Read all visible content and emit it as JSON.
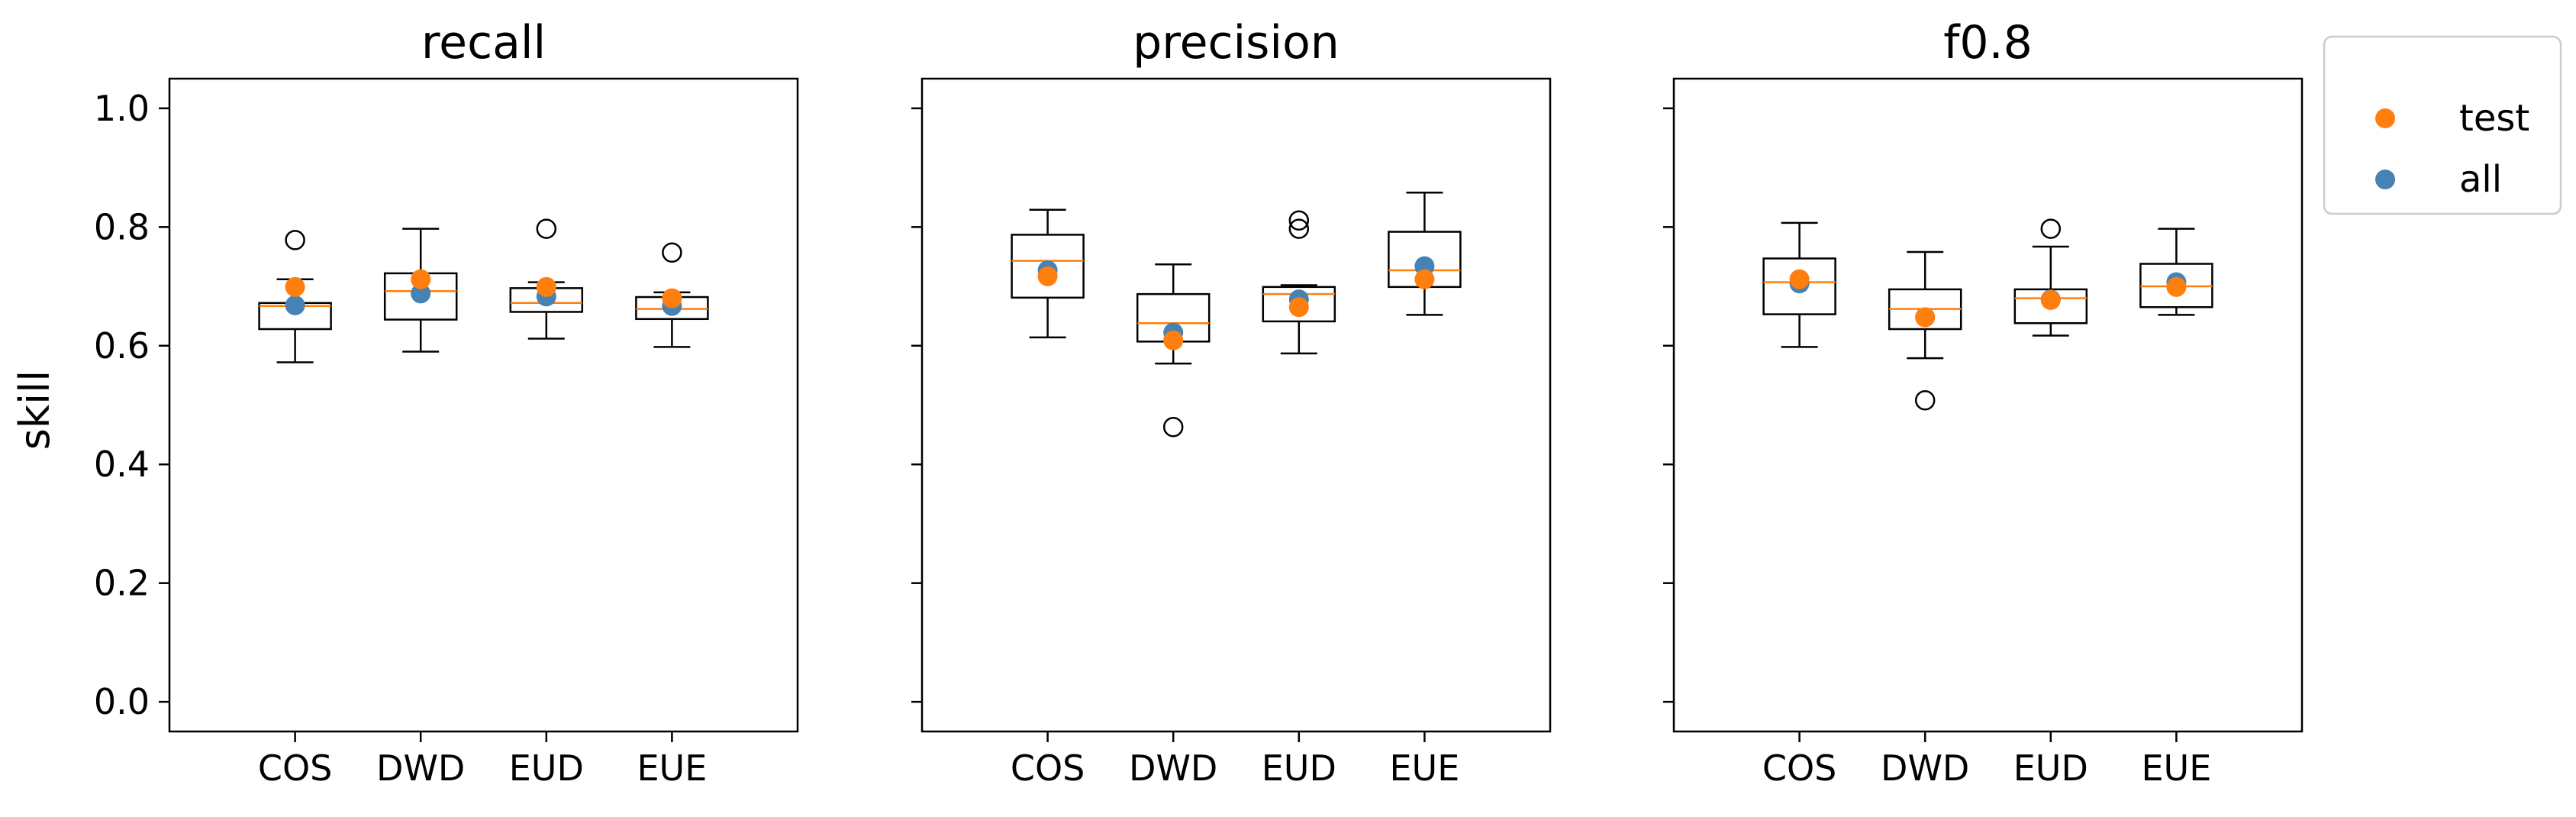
{
  "chart_data": {
    "type": "box",
    "ylabel": "skill",
    "ylim": [
      -0.05,
      1.05
    ],
    "yticks": [
      0.0,
      0.2,
      0.4,
      0.6,
      0.8,
      1.0
    ],
    "ytick_labels": [
      "0.0",
      "0.2",
      "0.4",
      "0.6",
      "0.8",
      "1.0"
    ],
    "categories": [
      "COS",
      "DWD",
      "EUD",
      "EUE"
    ],
    "legend": {
      "placement": "outside-right-top",
      "entries": [
        {
          "label": "test",
          "color": "#ff7f0e"
        },
        {
          "label": "all",
          "color": "#4682b4"
        }
      ]
    },
    "colors": {
      "median": "#ff7f0e",
      "test": "#ff7f0e",
      "all": "#4682b4",
      "box": "#000000"
    },
    "panels": [
      {
        "title": "recall",
        "boxes": [
          {
            "category": "COS",
            "whislo": 0.572,
            "q1": 0.628,
            "med": 0.667,
            "q3": 0.672,
            "whishi": 0.712,
            "fliers": [
              0.778
            ],
            "test": 0.699,
            "all": 0.668
          },
          {
            "category": "DWD",
            "whislo": 0.59,
            "q1": 0.644,
            "med": 0.692,
            "q3": 0.722,
            "whishi": 0.797,
            "fliers": [],
            "test": 0.712,
            "all": 0.688
          },
          {
            "category": "EUD",
            "whislo": 0.612,
            "q1": 0.657,
            "med": 0.672,
            "q3": 0.697,
            "whishi": 0.707,
            "fliers": [
              0.797
            ],
            "test": 0.699,
            "all": 0.683
          },
          {
            "category": "EUE",
            "whislo": 0.598,
            "q1": 0.645,
            "med": 0.662,
            "q3": 0.682,
            "whishi": 0.69,
            "fliers": [
              0.757
            ],
            "test": 0.68,
            "all": 0.667
          }
        ]
      },
      {
        "title": "precision",
        "boxes": [
          {
            "category": "COS",
            "whislo": 0.614,
            "q1": 0.681,
            "med": 0.743,
            "q3": 0.787,
            "whishi": 0.829,
            "fliers": [],
            "test": 0.717,
            "all": 0.727
          },
          {
            "category": "DWD",
            "whislo": 0.57,
            "q1": 0.607,
            "med": 0.638,
            "q3": 0.687,
            "whishi": 0.737,
            "fliers": [
              0.463
            ],
            "test": 0.609,
            "all": 0.622
          },
          {
            "category": "EUD",
            "whislo": 0.587,
            "q1": 0.641,
            "med": 0.687,
            "q3": 0.699,
            "whishi": 0.702,
            "fliers": [
              0.797,
              0.811
            ],
            "test": 0.665,
            "all": 0.678
          },
          {
            "category": "EUE",
            "whislo": 0.652,
            "q1": 0.699,
            "med": 0.727,
            "q3": 0.792,
            "whishi": 0.858,
            "fliers": [],
            "test": 0.712,
            "all": 0.734
          }
        ]
      },
      {
        "title": "f0.8",
        "boxes": [
          {
            "category": "COS",
            "whislo": 0.598,
            "q1": 0.653,
            "med": 0.707,
            "q3": 0.747,
            "whishi": 0.807,
            "fliers": [],
            "test": 0.712,
            "all": 0.705
          },
          {
            "category": "DWD",
            "whislo": 0.579,
            "q1": 0.628,
            "med": 0.662,
            "q3": 0.695,
            "whishi": 0.758,
            "fliers": [
              0.508
            ],
            "test": 0.648,
            "all": 0.648
          },
          {
            "category": "EUD",
            "whislo": 0.617,
            "q1": 0.638,
            "med": 0.68,
            "q3": 0.695,
            "whishi": 0.767,
            "fliers": [
              0.797
            ],
            "test": 0.677,
            "all": 0.678
          },
          {
            "category": "EUE",
            "whislo": 0.652,
            "q1": 0.665,
            "med": 0.7,
            "q3": 0.738,
            "whishi": 0.797,
            "fliers": [],
            "test": 0.699,
            "all": 0.707
          }
        ]
      }
    ]
  }
}
